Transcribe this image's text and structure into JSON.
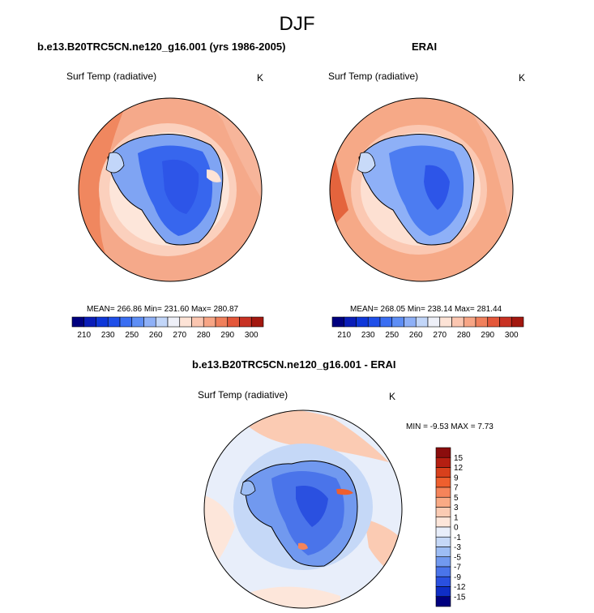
{
  "title": "DJF",
  "colors": {
    "land_outline": "#000000",
    "continent_deep": "#2d5cf0",
    "continent_mid": "#4f7df3",
    "continent_light": "#9ebcf6",
    "ocean_warm": "#f7b59a",
    "ocean_warmer": "#f08a68",
    "ocean_warmest": "#e4643d",
    "pale": "#fde3d6",
    "diff_pos": "#f3a98a",
    "diff_neg": "#c5d8f7"
  },
  "chart_data": [
    {
      "type": "heatmap",
      "title": "b.e13.B20TRC5CN.ne120_g16.001 (yrs 1986-2005)",
      "variable": "Surf Temp (radiative)",
      "units": "K",
      "stats": "MEAN= 266.86  Min= 231.60  Max= 280.87",
      "colorbar": {
        "levels": [
          210,
          220,
          230,
          240,
          250,
          255,
          260,
          265,
          270,
          275,
          280,
          285,
          290,
          295,
          300
        ],
        "tick_labels": [
          "210",
          "230",
          "250",
          "260",
          "270",
          "280",
          "290",
          "300"
        ],
        "colors": [
          "#00007f",
          "#0a1db8",
          "#0e37d9",
          "#1f4fe9",
          "#3a6ef2",
          "#5e8ef5",
          "#8eb0f7",
          "#c2d6f9",
          "#eef0f8",
          "#fde3d6",
          "#fbc6b0",
          "#f7a585",
          "#f0805c",
          "#e4573a",
          "#c83223",
          "#a3180f"
        ]
      }
    },
    {
      "type": "heatmap",
      "title": "ERAI",
      "variable": "Surf Temp (radiative)",
      "units": "K",
      "stats": "MEAN= 268.05  Min= 238.14  Max= 281.44",
      "colorbar": {
        "levels": [
          210,
          220,
          230,
          240,
          250,
          255,
          260,
          265,
          270,
          275,
          280,
          285,
          290,
          295,
          300
        ],
        "tick_labels": [
          "210",
          "230",
          "250",
          "260",
          "270",
          "280",
          "290",
          "300"
        ],
        "colors": [
          "#00007f",
          "#0a1db8",
          "#0e37d9",
          "#1f4fe9",
          "#3a6ef2",
          "#5e8ef5",
          "#8eb0f7",
          "#c2d6f9",
          "#eef0f8",
          "#fde3d6",
          "#fbc6b0",
          "#f7a585",
          "#f0805c",
          "#e4573a",
          "#c83223",
          "#a3180f"
        ]
      }
    },
    {
      "type": "heatmap",
      "title": "b.e13.B20TRC5CN.ne120_g16.001 - ERAI",
      "variable": "Surf Temp (radiative)",
      "units": "K",
      "stats": "MIN =  -9.53 MAX =   7.73",
      "colorbar": {
        "levels": [
          15,
          12,
          9,
          7,
          5,
          3,
          1,
          0,
          -1,
          -3,
          -5,
          -7,
          -9,
          -12,
          -15
        ],
        "tick_labels": [
          "15",
          "12",
          "9",
          "7",
          "5",
          "3",
          "1",
          "0",
          "-1",
          "-3",
          "-5",
          "-7",
          "-9",
          "-12",
          "-15"
        ],
        "colors": [
          "#8b0d0d",
          "#b51f12",
          "#d8401c",
          "#ee5f2e",
          "#f5845a",
          "#f9aa85",
          "#fbcbb3",
          "#fde6da",
          "#e8eefa",
          "#c5d8f7",
          "#9dbdf4",
          "#7199ef",
          "#4a74ea",
          "#2a50e0",
          "#0f2ec6",
          "#00007f"
        ]
      }
    }
  ]
}
